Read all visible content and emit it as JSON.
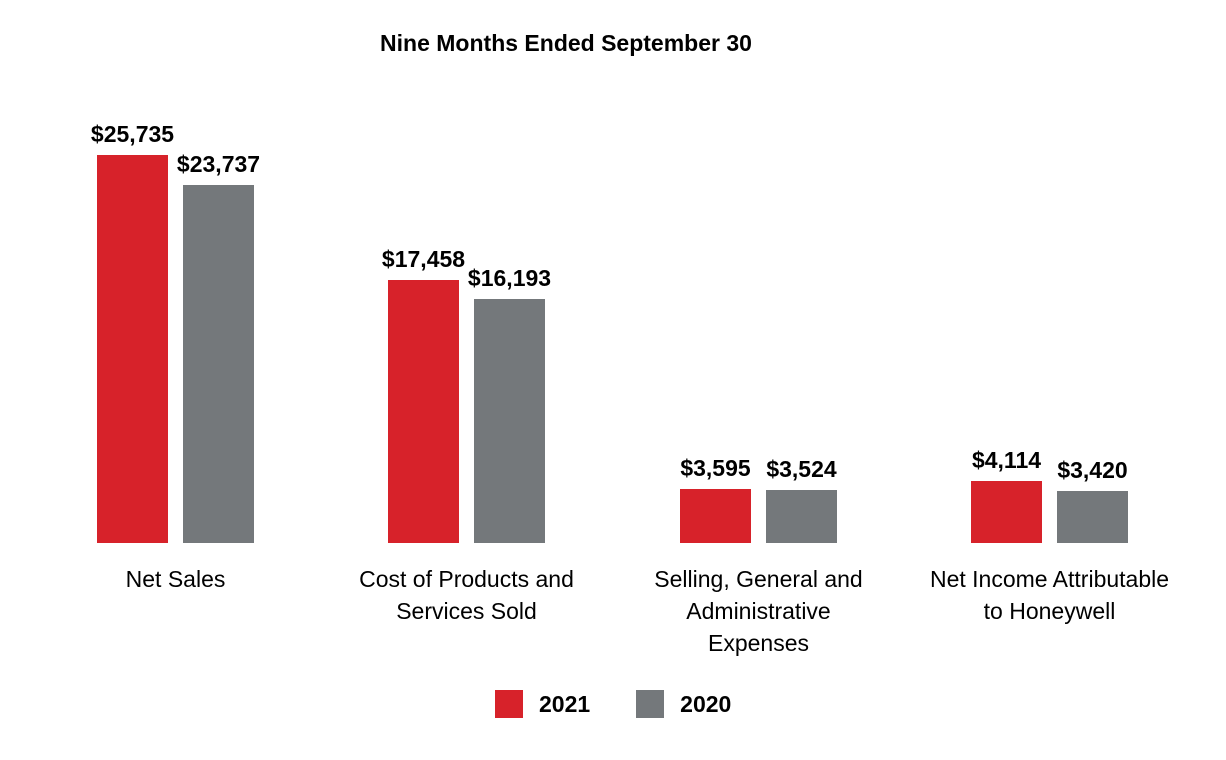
{
  "page": {
    "background": "#FFFFFF",
    "text_color": "#000000"
  },
  "chart_data": {
    "type": "bar",
    "title": "Nine Months Ended September 30",
    "categories": [
      "Net Sales",
      "Cost of Products and\nServices Sold",
      "Selling, General and\nAdministrative\nExpenses",
      "Net Income Attributable\nto Honeywell"
    ],
    "series": [
      {
        "name": "2021",
        "color": "#D7222A",
        "values": [
          25735,
          17458,
          3595,
          4114
        ],
        "value_labels": [
          "$25,735",
          "$17,458",
          "$3,595",
          "$4,114"
        ]
      },
      {
        "name": "2020",
        "color": "#74787B",
        "values": [
          23737,
          16193,
          3524,
          3420
        ],
        "value_labels": [
          "$23,737",
          "$16,193",
          "$3,524",
          "$3,420"
        ]
      }
    ],
    "value_prefix": "$",
    "ylim": [
      0,
      26000
    ],
    "grid": false,
    "axes_visible": false,
    "data_labels": true,
    "legend_position": "bottom-center"
  }
}
